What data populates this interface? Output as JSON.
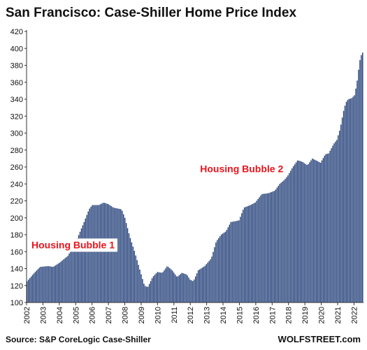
{
  "chart_data": {
    "type": "bar",
    "title": "San Francisco: Case-Shiller Home Price Index",
    "source": "Source: S&P CoreLogic Case-Shiller",
    "brand": "WOLFSTREET.com",
    "ylim": [
      100,
      420
    ],
    "yticks": [
      100,
      120,
      140,
      160,
      180,
      200,
      220,
      240,
      260,
      280,
      300,
      320,
      340,
      360,
      380,
      400,
      420
    ],
    "xlim": [
      2002,
      2022.58
    ],
    "xticks": [
      "2002",
      "2003",
      "2004",
      "2005",
      "2006",
      "2007",
      "2008",
      "2009",
      "2010",
      "2011",
      "2012",
      "2013",
      "2014",
      "2015",
      "2016",
      "2017",
      "2018",
      "2019",
      "2020",
      "2021",
      "2022"
    ],
    "grid": false,
    "bar_color": "#223f78",
    "annotations": [
      {
        "text": "Housing Bubble 1",
        "x": 2002.3,
        "y": 164
      },
      {
        "text": "Housing Bubble 2",
        "x": 2012.6,
        "y": 254
      }
    ],
    "keypoints": [
      [
        2002.0,
        125
      ],
      [
        2002.4,
        134
      ],
      [
        2002.8,
        142
      ],
      [
        2003.3,
        143
      ],
      [
        2003.6,
        142
      ],
      [
        2004.0,
        147
      ],
      [
        2004.5,
        155
      ],
      [
        2005.0,
        172
      ],
      [
        2005.5,
        195
      ],
      [
        2005.8,
        210
      ],
      [
        2006.0,
        215
      ],
      [
        2006.4,
        215
      ],
      [
        2006.7,
        218
      ],
      [
        2007.0,
        216
      ],
      [
        2007.3,
        212
      ],
      [
        2007.8,
        210
      ],
      [
        2008.0,
        200
      ],
      [
        2008.3,
        178
      ],
      [
        2008.6,
        160
      ],
      [
        2008.9,
        140
      ],
      [
        2009.2,
        120
      ],
      [
        2009.4,
        118
      ],
      [
        2009.7,
        130
      ],
      [
        2010.0,
        136
      ],
      [
        2010.3,
        135
      ],
      [
        2010.6,
        143
      ],
      [
        2010.9,
        138
      ],
      [
        2011.2,
        130
      ],
      [
        2011.5,
        135
      ],
      [
        2011.8,
        133
      ],
      [
        2012.0,
        127
      ],
      [
        2012.2,
        125
      ],
      [
        2012.5,
        138
      ],
      [
        2012.9,
        143
      ],
      [
        2013.3,
        152
      ],
      [
        2013.6,
        172
      ],
      [
        2013.9,
        180
      ],
      [
        2014.2,
        184
      ],
      [
        2014.5,
        195
      ],
      [
        2014.8,
        196
      ],
      [
        2015.0,
        197
      ],
      [
        2015.3,
        212
      ],
      [
        2015.7,
        215
      ],
      [
        2016.0,
        218
      ],
      [
        2016.4,
        228
      ],
      [
        2016.8,
        229
      ],
      [
        2017.2,
        232
      ],
      [
        2017.5,
        240
      ],
      [
        2017.8,
        245
      ],
      [
        2018.0,
        250
      ],
      [
        2018.3,
        260
      ],
      [
        2018.6,
        268
      ],
      [
        2018.9,
        266
      ],
      [
        2019.2,
        262
      ],
      [
        2019.5,
        270
      ],
      [
        2019.8,
        267
      ],
      [
        2020.0,
        265
      ],
      [
        2020.3,
        275
      ],
      [
        2020.5,
        276
      ],
      [
        2020.8,
        287
      ],
      [
        2021.0,
        292
      ],
      [
        2021.2,
        305
      ],
      [
        2021.4,
        325
      ],
      [
        2021.55,
        336
      ],
      [
        2021.7,
        340
      ],
      [
        2021.9,
        341
      ],
      [
        2022.1,
        345
      ],
      [
        2022.25,
        362
      ],
      [
        2022.4,
        385
      ],
      [
        2022.5,
        392
      ],
      [
        2022.58,
        395
      ]
    ]
  }
}
